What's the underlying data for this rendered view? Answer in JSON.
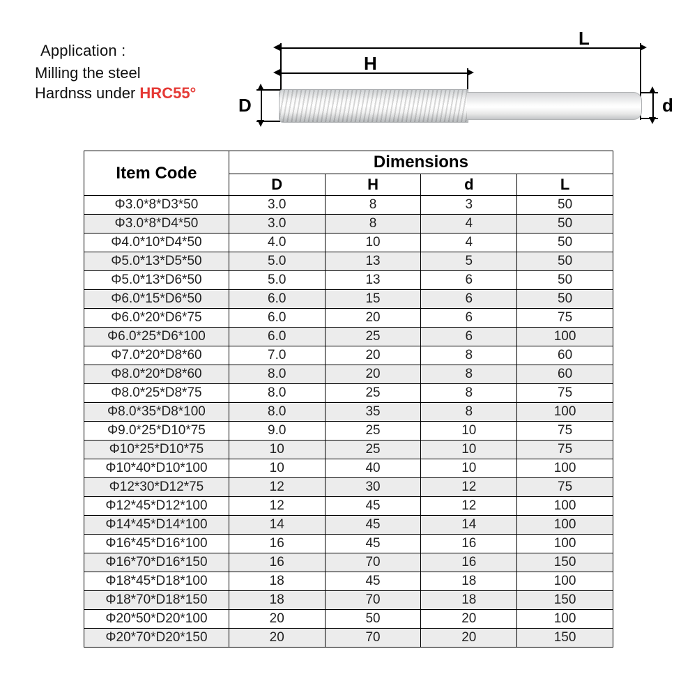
{
  "header": {
    "application_label": "Application :",
    "line1": "Milling the steel",
    "line2_prefix": "Hardnss under ",
    "hardness": "HRC55°"
  },
  "diagram": {
    "labels": {
      "L": "L",
      "H": "H",
      "D": "D",
      "d": "d"
    }
  },
  "table": {
    "item_code_header": "Item Code",
    "dimensions_header": "Dimensions",
    "columns": [
      "D",
      "H",
      "d",
      "L"
    ],
    "column_widths": {
      "item": 208,
      "dim": 138
    },
    "row_alt_colors": [
      "#ffffff",
      "#ececec"
    ],
    "border_color": "#000000",
    "rows": [
      {
        "code": "Φ3.0*8*D3*50",
        "D": "3.0",
        "H": "8",
        "d": "3",
        "L": "50"
      },
      {
        "code": "Φ3.0*8*D4*50",
        "D": "3.0",
        "H": "8",
        "d": "4",
        "L": "50"
      },
      {
        "code": "Φ4.0*10*D4*50",
        "D": "4.0",
        "H": "10",
        "d": "4",
        "L": "50"
      },
      {
        "code": "Φ5.0*13*D5*50",
        "D": "5.0",
        "H": "13",
        "d": "5",
        "L": "50"
      },
      {
        "code": "Φ5.0*13*D6*50",
        "D": "5.0",
        "H": "13",
        "d": "6",
        "L": "50"
      },
      {
        "code": "Φ6.0*15*D6*50",
        "D": "6.0",
        "H": "15",
        "d": "6",
        "L": "50"
      },
      {
        "code": "Φ6.0*20*D6*75",
        "D": "6.0",
        "H": "20",
        "d": "6",
        "L": "75"
      },
      {
        "code": "Φ6.0*25*D6*100",
        "D": "6.0",
        "H": "25",
        "d": "6",
        "L": "100"
      },
      {
        "code": "Φ7.0*20*D8*60",
        "D": "7.0",
        "H": "20",
        "d": "8",
        "L": "60"
      },
      {
        "code": "Φ8.0*20*D8*60",
        "D": "8.0",
        "H": "20",
        "d": "8",
        "L": "60"
      },
      {
        "code": "Φ8.0*25*D8*75",
        "D": "8.0",
        "H": "25",
        "d": "8",
        "L": "75"
      },
      {
        "code": "Φ8.0*35*D8*100",
        "D": "8.0",
        "H": "35",
        "d": "8",
        "L": "100"
      },
      {
        "code": "Φ9.0*25*D10*75",
        "D": "9.0",
        "H": "25",
        "d": "10",
        "L": "75"
      },
      {
        "code": "Φ10*25*D10*75",
        "D": "10",
        "H": "25",
        "d": "10",
        "L": "75"
      },
      {
        "code": "Φ10*40*D10*100",
        "D": "10",
        "H": "40",
        "d": "10",
        "L": "100"
      },
      {
        "code": "Φ12*30*D12*75",
        "D": "12",
        "H": "30",
        "d": "12",
        "L": "75"
      },
      {
        "code": "Φ12*45*D12*100",
        "D": "12",
        "H": "45",
        "d": "12",
        "L": "100"
      },
      {
        "code": "Φ14*45*D14*100",
        "D": "14",
        "H": "45",
        "d": "14",
        "L": "100"
      },
      {
        "code": "Φ16*45*D16*100",
        "D": "16",
        "H": "45",
        "d": "16",
        "L": "100"
      },
      {
        "code": "Φ16*70*D16*150",
        "D": "16",
        "H": "70",
        "d": "16",
        "L": "150"
      },
      {
        "code": "Φ18*45*D18*100",
        "D": "18",
        "H": "45",
        "d": "18",
        "L": "100"
      },
      {
        "code": "Φ18*70*D18*150",
        "D": "18",
        "H": "70",
        "d": "18",
        "L": "150"
      },
      {
        "code": "Φ20*50*D20*100",
        "D": "20",
        "H": "50",
        "d": "20",
        "L": "100"
      },
      {
        "code": "Φ20*70*D20*150",
        "D": "20",
        "H": "70",
        "d": "20",
        "L": "150"
      }
    ]
  },
  "colors": {
    "accent_red": "#e53935",
    "text": "#000000",
    "background": "#ffffff"
  }
}
